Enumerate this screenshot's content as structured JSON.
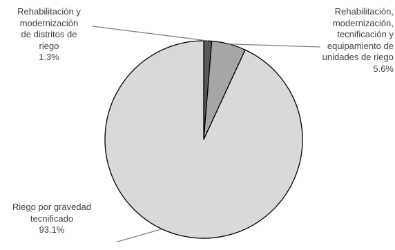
{
  "chart_data": {
    "type": "pie",
    "slices": [
      {
        "label_lines": [
          "Rehabilitación y",
          "modernización",
          "de distritos de",
          "riego"
        ],
        "value": 1.3,
        "value_label": "1.3%",
        "color": "#595959"
      },
      {
        "label_lines": [
          "Rehabilitación,",
          "modernización,",
          "tecnificación y",
          "equipamiento de",
          "unidades de riego"
        ],
        "value": 5.6,
        "value_label": "5.6%",
        "color": "#a6a6a6"
      },
      {
        "label_lines": [
          "Riego por gravedad",
          "tecnificado"
        ],
        "value": 93.1,
        "value_label": "93.1%",
        "color": "#d9d9d9"
      }
    ],
    "start_angle": "12 o'clock",
    "direction": "clockwise",
    "leader_line_color": "#808080",
    "slice_border_color": "#000000"
  }
}
